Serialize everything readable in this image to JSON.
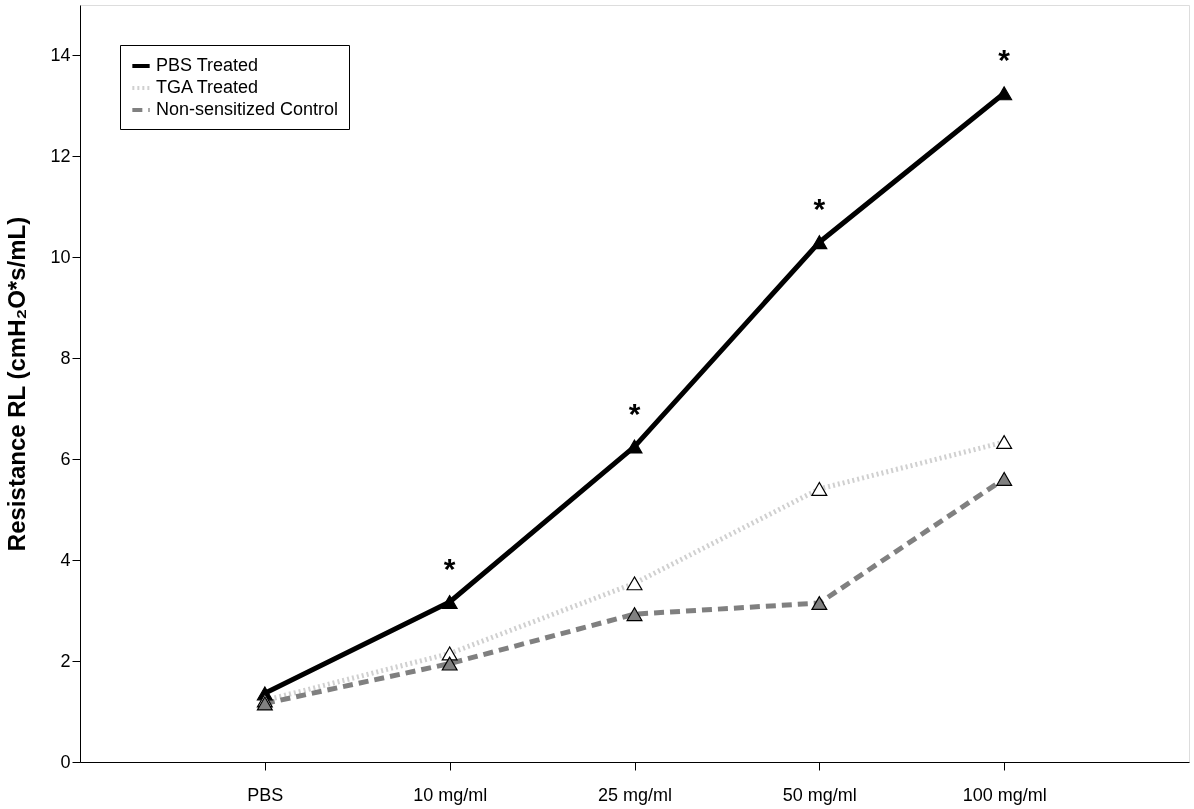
{
  "chart_data": {
    "type": "line",
    "ylabel": "Resistance RL (cmH₂O*s/mL)",
    "categories": [
      "PBS",
      "10 mg/ml",
      "25 mg/ml",
      "50 mg/ml",
      "100 mg/ml"
    ],
    "series": [
      {
        "name": "PBS Treated",
        "color": "#000000",
        "line_style": "solid",
        "values": [
          1.36,
          3.17,
          6.25,
          10.3,
          13.25
        ]
      },
      {
        "name": "TGA Treated",
        "color": "#d0d0d0",
        "line_style": "dotted",
        "values": [
          1.22,
          2.15,
          3.54,
          5.41,
          6.34
        ]
      },
      {
        "name": "Non-sensitized Control",
        "color": "#808080",
        "line_style": "dashed",
        "values": [
          1.16,
          1.95,
          2.93,
          3.15,
          5.61
        ]
      }
    ],
    "marker": "triangle",
    "ylim": [
      0,
      15
    ],
    "yticks": [
      0,
      2,
      4,
      6,
      8,
      10,
      12,
      14
    ],
    "grid": false,
    "legend": "top left",
    "annotations": [
      "*",
      "*",
      "*",
      "*"
    ]
  }
}
